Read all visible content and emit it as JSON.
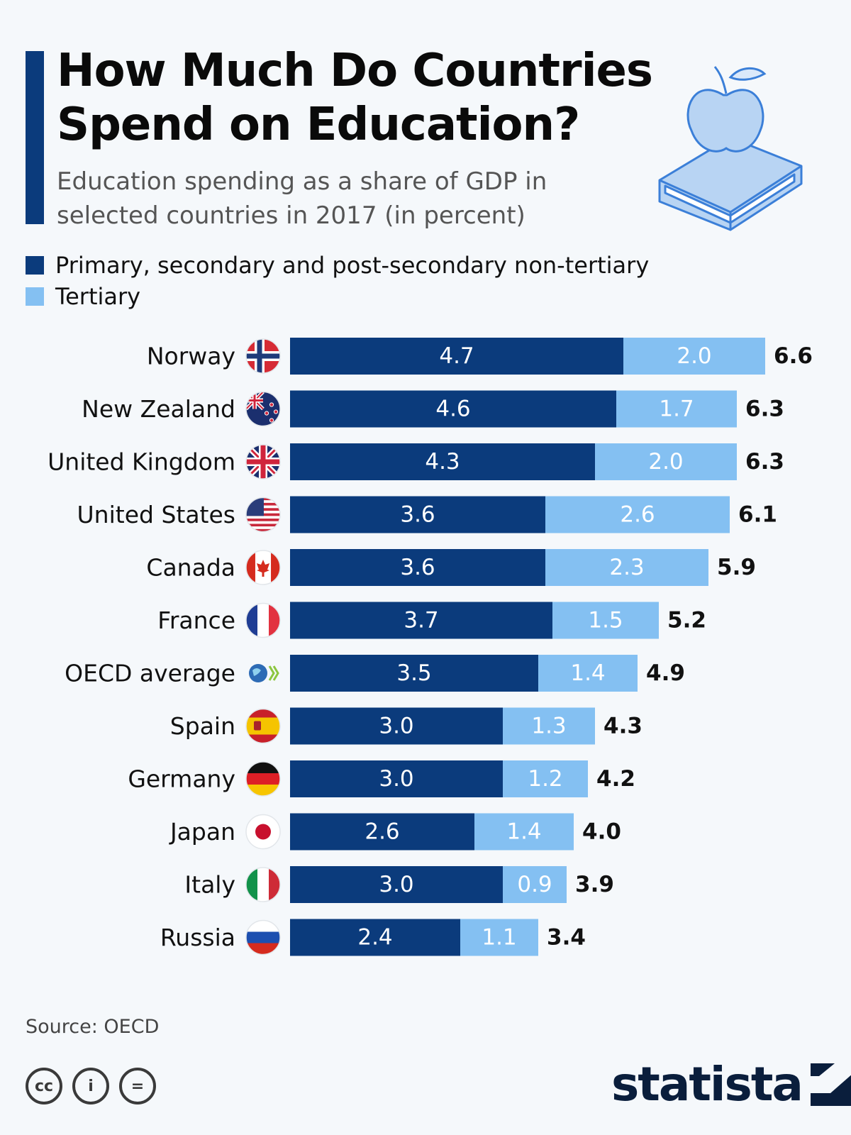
{
  "header": {
    "title": "How Much Do Countries Spend on Education?",
    "subtitle": "Education spending as a share of GDP in selected countries in 2017 (in percent)"
  },
  "legend": {
    "primary": "Primary, secondary and post-secondary non-tertiary",
    "tertiary": "Tertiary"
  },
  "colors": {
    "primary": "#0b3b7c",
    "tertiary": "#84c0f2",
    "background": "#f5f8fb"
  },
  "chart_data": {
    "type": "bar",
    "orientation": "horizontal",
    "stacked": true,
    "title": "How Much Do Countries Spend on Education?",
    "xlabel": "",
    "ylabel": "",
    "categories": [
      "Norway",
      "New Zealand",
      "United Kingdom",
      "United States",
      "Canada",
      "France",
      "OECD average",
      "Spain",
      "Germany",
      "Japan",
      "Italy",
      "Russia"
    ],
    "series": [
      {
        "name": "Primary, secondary and post-secondary non-tertiary",
        "values": [
          4.7,
          4.6,
          4.3,
          3.6,
          3.6,
          3.7,
          3.5,
          3.0,
          3.0,
          2.6,
          3.0,
          2.4
        ]
      },
      {
        "name": "Tertiary",
        "values": [
          2.0,
          1.7,
          2.0,
          2.6,
          2.3,
          1.5,
          1.4,
          1.3,
          1.2,
          1.4,
          0.9,
          1.1
        ]
      }
    ],
    "totals": [
      6.6,
      6.3,
      6.3,
      6.1,
      5.9,
      5.2,
      4.9,
      4.3,
      4.2,
      4.0,
      3.9,
      3.4
    ],
    "flags": [
      "norway-flag",
      "new-zealand-flag",
      "united-kingdom-flag",
      "united-states-flag",
      "canada-flag",
      "france-flag",
      "oecd-logo",
      "spain-flag",
      "germany-flag",
      "japan-flag",
      "italy-flag",
      "russia-flag"
    ],
    "xlim": [
      0,
      6.6
    ]
  },
  "footer": {
    "source": "Source: OECD",
    "brand": "statista",
    "license_icons": [
      "cc",
      "i",
      "="
    ]
  }
}
